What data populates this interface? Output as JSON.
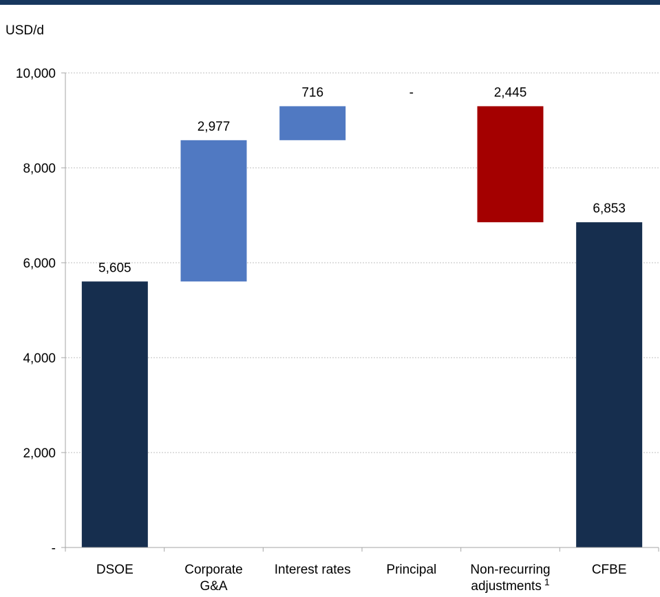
{
  "header": {
    "unit_label": "USD/d"
  },
  "colors": {
    "top_bar": "#17375e",
    "total": "#162e4e",
    "increase": "#5079c2",
    "decrease": "#a40000",
    "grid": "#bfbfbf"
  },
  "chart_data": {
    "type": "bar",
    "subtype": "waterfall",
    "title": "",
    "xlabel": "",
    "ylabel": "USD/d",
    "ylim": [
      0,
      10000
    ],
    "yticks": [
      0,
      2000,
      4000,
      6000,
      8000,
      10000
    ],
    "ytick_labels": [
      "-",
      "2,000",
      "4,000",
      "6,000",
      "8,000",
      "10,000"
    ],
    "grid": true,
    "categories": [
      {
        "lines": [
          "DSOE"
        ],
        "sup": ""
      },
      {
        "lines": [
          "Corporate",
          "G&A"
        ],
        "sup": ""
      },
      {
        "lines": [
          "Interest rates"
        ],
        "sup": ""
      },
      {
        "lines": [
          "Principal"
        ],
        "sup": ""
      },
      {
        "lines": [
          "Non-recurring",
          "adjustments"
        ],
        "sup": "1"
      },
      {
        "lines": [
          "CFBE"
        ],
        "sup": ""
      }
    ],
    "bars": [
      {
        "kind": "total",
        "base": 0,
        "value": 5605,
        "label": "5,605"
      },
      {
        "kind": "increase",
        "base": 5605,
        "value": 2977,
        "label": "2,977"
      },
      {
        "kind": "increase",
        "base": 8582,
        "value": 716,
        "label": "716"
      },
      {
        "kind": "increase",
        "base": 9298,
        "value": 0,
        "label": "-"
      },
      {
        "kind": "decrease",
        "base": 6853,
        "value": 2445,
        "label": "2,445"
      },
      {
        "kind": "total",
        "base": 0,
        "value": 6853,
        "label": "6,853"
      }
    ]
  }
}
